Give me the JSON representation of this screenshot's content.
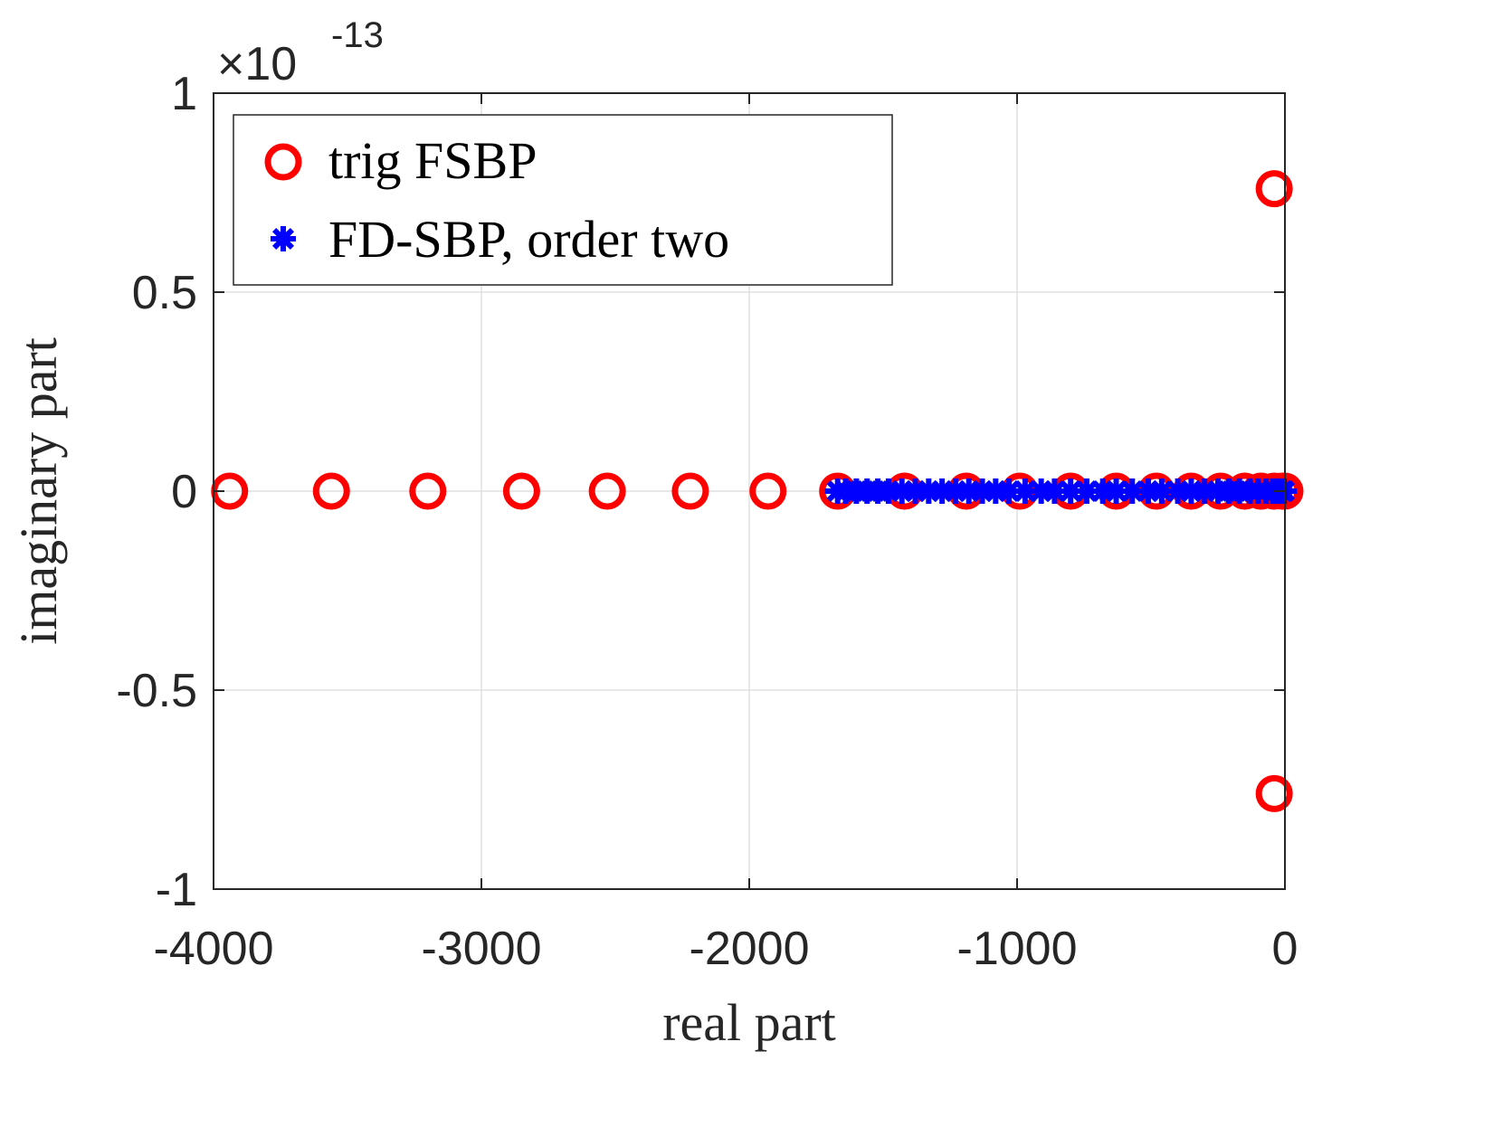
{
  "chart_data": {
    "type": "scatter",
    "xlabel": "real part",
    "ylabel": "imaginary part",
    "xlim": [
      -4000,
      0
    ],
    "ylim": [
      -1,
      1
    ],
    "y_exponent_label": {
      "base": "×10",
      "exponent": "-13"
    },
    "x_ticks": [
      {
        "value": -4000,
        "label": "-4000"
      },
      {
        "value": -3000,
        "label": "-3000"
      },
      {
        "value": -2000,
        "label": "-2000"
      },
      {
        "value": -1000,
        "label": "-1000"
      },
      {
        "value": 0,
        "label": "0"
      }
    ],
    "y_ticks": [
      {
        "value": 1,
        "label": "1"
      },
      {
        "value": 0.5,
        "label": "0.5"
      },
      {
        "value": 0,
        "label": "0"
      },
      {
        "value": -0.5,
        "label": "-0.5"
      },
      {
        "value": -1,
        "label": "-1"
      }
    ],
    "grid": true,
    "legend": {
      "position": "top-left"
    },
    "colors": {
      "trig": "#ff0000",
      "fd": "#0000ff",
      "grid": "#e0e0e0",
      "axis": "#262626"
    },
    "series": [
      {
        "name": "trig FSBP",
        "marker": "circle",
        "color": "#ff0000",
        "points": [
          [
            -3940,
            0
          ],
          [
            -3560,
            0
          ],
          [
            -3200,
            0
          ],
          [
            -2850,
            0
          ],
          [
            -2530,
            0
          ],
          [
            -2220,
            0
          ],
          [
            -1930,
            0
          ],
          [
            -1670,
            0
          ],
          [
            -1420,
            0
          ],
          [
            -1190,
            0
          ],
          [
            -990,
            0
          ],
          [
            -800,
            0
          ],
          [
            -630,
            0
          ],
          [
            -480,
            0
          ],
          [
            -350,
            0
          ],
          [
            -240,
            0
          ],
          [
            -150,
            0
          ],
          [
            -90,
            0
          ],
          [
            -40,
            0
          ],
          [
            -10,
            0
          ],
          [
            0,
            0
          ],
          [
            -40,
            0.76
          ],
          [
            -40,
            -0.76
          ]
        ]
      },
      {
        "name": "FD-SBP, order two",
        "marker": "asterisk",
        "color": "#0000ff",
        "points": [
          [
            -1670,
            0
          ],
          [
            -1640,
            0
          ],
          [
            -1600,
            0
          ],
          [
            -1560,
            0
          ],
          [
            -1520,
            0
          ],
          [
            -1480,
            0
          ],
          [
            -1430,
            0
          ],
          [
            -1380,
            0
          ],
          [
            -1330,
            0
          ],
          [
            -1280,
            0
          ],
          [
            -1230,
            0
          ],
          [
            -1180,
            0
          ],
          [
            -1130,
            0
          ],
          [
            -1080,
            0
          ],
          [
            -1030,
            0
          ],
          [
            -970,
            0
          ],
          [
            -910,
            0
          ],
          [
            -860,
            0
          ],
          [
            -800,
            0
          ],
          [
            -740,
            0
          ],
          [
            -680,
            0
          ],
          [
            -630,
            0
          ],
          [
            -570,
            0
          ],
          [
            -510,
            0
          ],
          [
            -460,
            0
          ],
          [
            -400,
            0
          ],
          [
            -350,
            0
          ],
          [
            -300,
            0
          ],
          [
            -250,
            0
          ],
          [
            -210,
            0
          ],
          [
            -170,
            0
          ],
          [
            -130,
            0
          ],
          [
            -100,
            0
          ],
          [
            -70,
            0
          ],
          [
            -45,
            0
          ],
          [
            -25,
            0
          ],
          [
            -10,
            0
          ],
          [
            -3,
            0
          ]
        ]
      }
    ]
  }
}
